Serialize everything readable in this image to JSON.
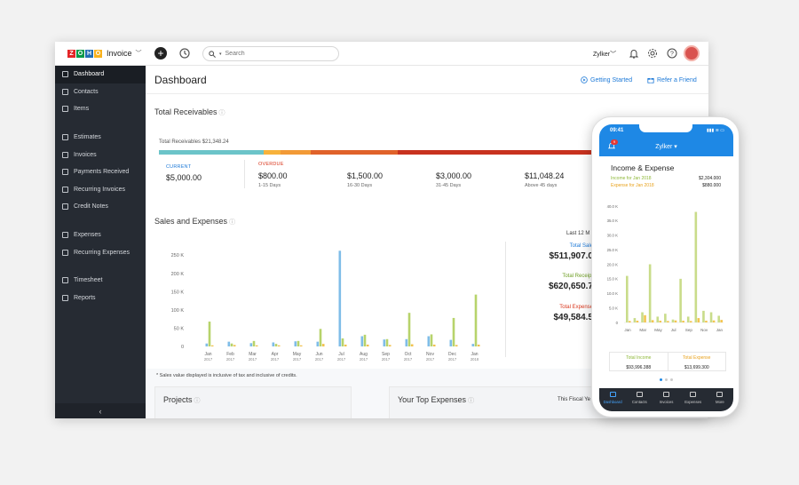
{
  "app": {
    "brand_letters": [
      "Z",
      "O",
      "H",
      "O"
    ],
    "brand_colors": [
      "#e42527",
      "#089949",
      "#226db4",
      "#f9b21d"
    ],
    "name": "Invoice",
    "caret": "﹀",
    "search_placeholder": "Search",
    "org": "Zylker"
  },
  "sidebar": {
    "items": [
      {
        "label": "Dashboard",
        "icon": "home-icon"
      },
      {
        "label": "Contacts",
        "icon": "user-icon"
      },
      {
        "label": "Items",
        "icon": "box-icon"
      },
      {
        "label": "Estimates",
        "icon": "document-icon"
      },
      {
        "label": "Invoices",
        "icon": "invoice-icon"
      },
      {
        "label": "Payments Received",
        "icon": "payment-icon"
      },
      {
        "label": "Recurring Invoices",
        "icon": "recurring-icon"
      },
      {
        "label": "Credit Notes",
        "icon": "credit-note-icon"
      },
      {
        "label": "Expenses",
        "icon": "expense-icon"
      },
      {
        "label": "Recurring Expenses",
        "icon": "recurring-expense-icon"
      },
      {
        "label": "Timesheet",
        "icon": "timesheet-icon"
      },
      {
        "label": "Reports",
        "icon": "reports-icon"
      }
    ],
    "collapse": "‹"
  },
  "header": {
    "title": "Dashboard",
    "getting_started": "Getting Started",
    "refer": "Refer a Friend"
  },
  "receivables": {
    "title": "Total Receivables",
    "total_label": "Total Receivables $21,348.24",
    "segments": [
      {
        "share": 0.24,
        "color": "#6cc4c9"
      },
      {
        "share": 0.04,
        "color": "#f7b23b"
      },
      {
        "share": 0.07,
        "color": "#f29a36"
      },
      {
        "share": 0.2,
        "color": "#e0622a"
      },
      {
        "share": 0.45,
        "color": "#c8321f"
      }
    ],
    "current_label": "CURRENT",
    "current_value": "$5,000.00",
    "overdue_label": "OVERDUE",
    "buckets": [
      {
        "value": "$800.00",
        "label": "1-15 Days"
      },
      {
        "value": "$1,500.00",
        "label": "16-30 Days"
      },
      {
        "value": "$3,000.00",
        "label": "31-45 Days"
      },
      {
        "value": "$11,048.24",
        "label": "Above 45 days"
      }
    ]
  },
  "sales": {
    "title": "Sales and Expenses",
    "period": "Last 12 M",
    "total_sales_label": "Total Sale",
    "total_sales_value": "$511,907.0",
    "total_receipts_label": "Total Receipt",
    "total_receipts_value": "$620,650.7",
    "total_expenses_label": "Total Expense",
    "total_expenses_value": "$49,584.5",
    "note": "* Sales value displayed is inclusive of tax and inclusive of credits."
  },
  "chart_data": {
    "type": "bar",
    "categories": [
      "Jan 2017",
      "Feb 2017",
      "Mar 2017",
      "Apr 2017",
      "May 2017",
      "Jun 2017",
      "Jul 2017",
      "Aug 2017",
      "Sep 2017",
      "Oct 2017",
      "Nov 2017",
      "Dec 2017",
      "Jan 2018"
    ],
    "ytick_labels": [
      "250 K",
      "200 K",
      "150 K",
      "100 K",
      "50 K",
      "0"
    ],
    "ylim": [
      0,
      270000
    ],
    "series": [
      {
        "name": "Total Sales",
        "color": "#7fbde8",
        "values": [
          8000,
          13000,
          9000,
          11000,
          14000,
          13000,
          262000,
          28000,
          19000,
          20000,
          28000,
          18000,
          7000
        ]
      },
      {
        "name": "Total Receipts",
        "color": "#b7d36b",
        "values": [
          68000,
          8000,
          15000,
          7000,
          15000,
          48000,
          22000,
          32000,
          20000,
          92000,
          33000,
          78000,
          142000
        ]
      },
      {
        "name": "Total Expenses",
        "color": "#f2c14e",
        "values": [
          3000,
          4000,
          3000,
          3000,
          3000,
          7000,
          5000,
          5000,
          4000,
          6000,
          5000,
          4000,
          5000
        ]
      }
    ],
    "grid": false,
    "legend": "right"
  },
  "bottom": {
    "projects": "Projects",
    "top_expenses": "Your Top Expenses",
    "fiscal": "This Fiscal Ye"
  },
  "phone": {
    "time": "09:41",
    "badge": "9",
    "org": "Zylker ▾",
    "title": "Income & Expense",
    "income_label": "Income for Jan 2018",
    "income_value": "$2,304.000",
    "expense_label": "Expense for Jan 2018",
    "expense_value": "$880.000",
    "income_color": "#8fb93a",
    "expense_color": "#e8a21d",
    "ytick_labels": [
      "40.0 K",
      "35.0 K",
      "30.0 K",
      "25.0 K",
      "20.0 K",
      "15.0 K",
      "10.0 K",
      "5.0 K",
      "0"
    ],
    "months": [
      "Jan",
      "Mar",
      "May",
      "Jul",
      "Sep",
      "Nov",
      "Jan"
    ],
    "income_values": [
      16000,
      1500,
      3500,
      20000,
      2000,
      3000,
      1000,
      15000,
      2000,
      38000,
      4000,
      3500,
      2300
    ],
    "expense_values": [
      500,
      600,
      2500,
      800,
      600,
      500,
      700,
      600,
      500,
      1500,
      600,
      700,
      880
    ],
    "total_income_label": "Total Income",
    "total_income_value": "$93,996.388",
    "total_expense_label": "Total Expense",
    "total_expense_value": "$13,699.300",
    "tabs": [
      {
        "label": "Dashboard",
        "active": true
      },
      {
        "label": "Contacts",
        "active": false
      },
      {
        "label": "Invoices",
        "active": false
      },
      {
        "label": "Expenses",
        "active": false
      },
      {
        "label": "More",
        "active": false
      }
    ]
  }
}
